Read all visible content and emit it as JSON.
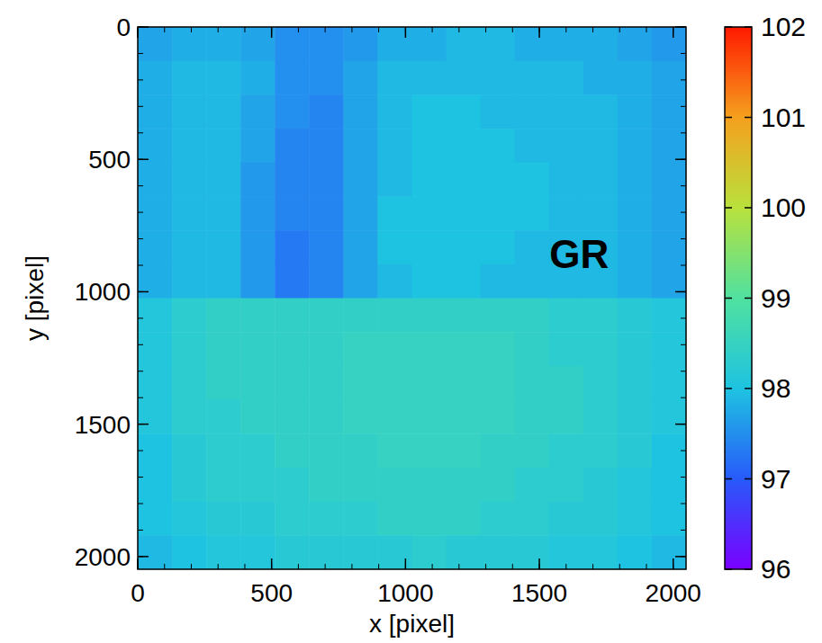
{
  "chart_data": {
    "type": "heatmap",
    "annotation": "GR",
    "x_label": "x [pixel]",
    "y_label": "y [pixel]",
    "xlim": [
      0,
      2048
    ],
    "ylim": [
      2048,
      0
    ],
    "xticks": [
      0,
      500,
      1000,
      1500,
      2000
    ],
    "yticks": [
      0,
      500,
      1000,
      1500,
      2000
    ],
    "xbins": [
      0,
      128,
      256,
      384,
      512,
      640,
      768,
      896,
      1024,
      1152,
      1280,
      1408,
      1536,
      1664,
      1792,
      1920,
      2048
    ],
    "ybins": [
      0,
      128,
      256,
      384,
      512,
      640,
      768,
      896,
      1024,
      1152,
      1280,
      1408,
      1536,
      1664,
      1792,
      1920,
      2048
    ],
    "cells": [
      [
        97.7,
        97.8,
        97.8,
        97.7,
        97.5,
        97.5,
        97.6,
        97.8,
        97.8,
        97.9,
        97.9,
        97.8,
        97.8,
        97.8,
        97.7,
        97.6
      ],
      [
        97.8,
        97.9,
        97.9,
        97.8,
        97.5,
        97.5,
        97.7,
        97.9,
        97.9,
        97.9,
        97.9,
        97.9,
        97.9,
        97.8,
        97.8,
        97.7
      ],
      [
        97.8,
        97.9,
        97.9,
        97.7,
        97.5,
        97.4,
        97.7,
        97.9,
        98.0,
        98.0,
        97.9,
        97.9,
        97.9,
        97.9,
        97.8,
        97.7
      ],
      [
        97.8,
        97.9,
        97.9,
        97.7,
        97.4,
        97.4,
        97.7,
        97.9,
        98.0,
        98.0,
        98.0,
        97.9,
        97.9,
        97.9,
        97.8,
        97.7
      ],
      [
        97.8,
        97.9,
        97.9,
        97.6,
        97.4,
        97.4,
        97.7,
        97.9,
        98.0,
        98.0,
        98.0,
        98.0,
        97.9,
        97.9,
        97.8,
        97.7
      ],
      [
        97.8,
        97.9,
        97.9,
        97.6,
        97.4,
        97.4,
        97.7,
        98.0,
        98.0,
        98.0,
        98.0,
        98.0,
        97.9,
        97.9,
        97.8,
        97.7
      ],
      [
        97.8,
        97.9,
        97.9,
        97.6,
        97.3,
        97.4,
        97.7,
        98.0,
        98.0,
        98.0,
        98.0,
        97.9,
        97.9,
        97.9,
        97.8,
        97.7
      ],
      [
        97.8,
        97.9,
        97.9,
        97.6,
        97.3,
        97.4,
        97.7,
        97.9,
        98.0,
        98.0,
        97.9,
        97.9,
        97.9,
        97.9,
        97.8,
        97.7
      ],
      [
        98.1,
        98.3,
        98.4,
        98.4,
        98.4,
        98.4,
        98.4,
        98.4,
        98.4,
        98.4,
        98.4,
        98.4,
        98.3,
        98.3,
        98.2,
        98.1
      ],
      [
        98.1,
        98.3,
        98.4,
        98.4,
        98.4,
        98.4,
        98.5,
        98.5,
        98.5,
        98.5,
        98.5,
        98.4,
        98.3,
        98.3,
        98.2,
        98.1
      ],
      [
        98.1,
        98.3,
        98.4,
        98.4,
        98.4,
        98.4,
        98.5,
        98.5,
        98.5,
        98.5,
        98.5,
        98.4,
        98.4,
        98.3,
        98.2,
        98.1
      ],
      [
        98.1,
        98.3,
        98.3,
        98.4,
        98.4,
        98.4,
        98.5,
        98.5,
        98.5,
        98.5,
        98.5,
        98.4,
        98.4,
        98.3,
        98.2,
        98.1
      ],
      [
        98.0,
        98.2,
        98.3,
        98.3,
        98.4,
        98.4,
        98.4,
        98.5,
        98.5,
        98.5,
        98.4,
        98.4,
        98.3,
        98.3,
        98.2,
        98.0
      ],
      [
        98.0,
        98.2,
        98.3,
        98.3,
        98.3,
        98.4,
        98.4,
        98.4,
        98.4,
        98.4,
        98.4,
        98.3,
        98.3,
        98.2,
        98.1,
        98.0
      ],
      [
        98.0,
        98.1,
        98.2,
        98.2,
        98.3,
        98.3,
        98.3,
        98.4,
        98.4,
        98.4,
        98.3,
        98.3,
        98.2,
        98.2,
        98.1,
        98.0
      ],
      [
        97.9,
        98.0,
        98.1,
        98.1,
        98.2,
        98.2,
        98.2,
        98.2,
        98.3,
        98.2,
        98.2,
        98.2,
        98.1,
        98.1,
        98.0,
        97.9
      ]
    ],
    "colorbar_range": [
      96,
      102
    ],
    "colorbar_ticks": [
      96,
      97,
      98,
      99,
      100,
      101,
      102
    ]
  }
}
